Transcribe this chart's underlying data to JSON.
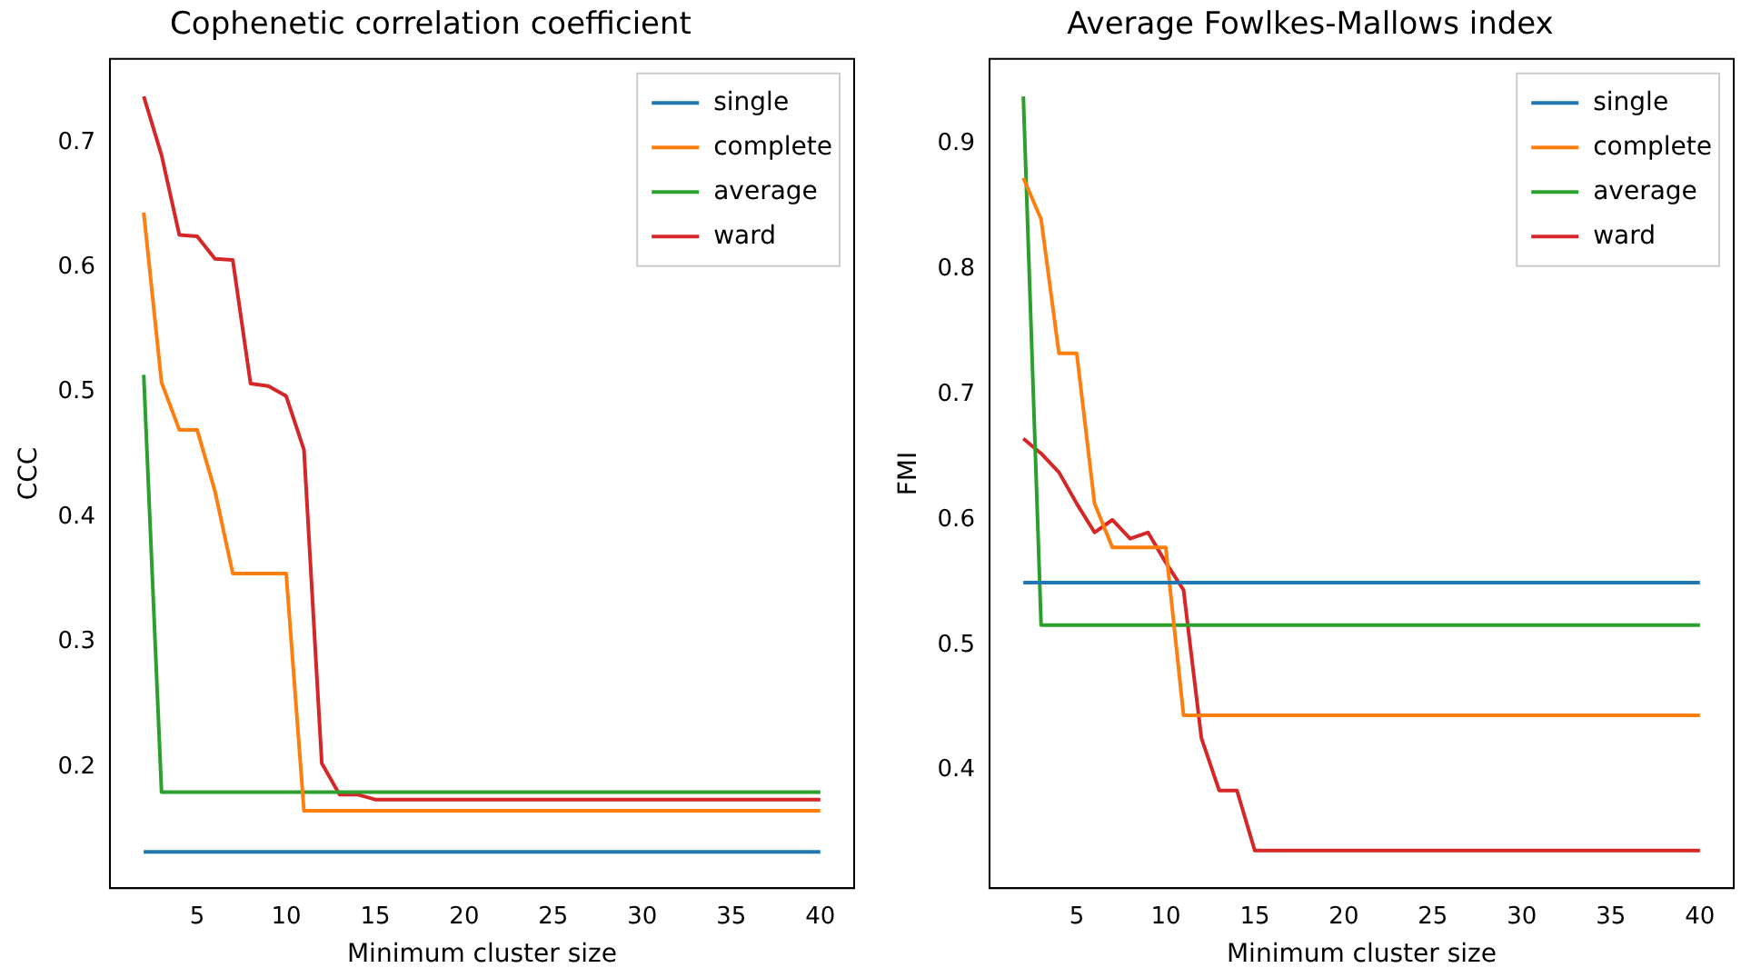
{
  "chart_data": [
    {
      "type": "line",
      "title": "Cophenetic correlation coefficient",
      "xlabel": "Minimum cluster size",
      "ylabel": "CCC",
      "x": [
        2,
        3,
        4,
        5,
        6,
        7,
        8,
        9,
        10,
        11,
        12,
        13,
        14,
        15,
        16,
        17,
        18,
        19,
        20,
        21,
        22,
        23,
        24,
        25,
        26,
        27,
        28,
        29,
        30,
        31,
        32,
        33,
        34,
        35,
        36,
        37,
        38,
        39,
        40
      ],
      "series": [
        {
          "name": "single",
          "color": "#1f77b4",
          "values": [
            0.132,
            0.132,
            0.132,
            0.132,
            0.132,
            0.132,
            0.132,
            0.132,
            0.132,
            0.132,
            0.132,
            0.132,
            0.132,
            0.132,
            0.132,
            0.132,
            0.132,
            0.132,
            0.132,
            0.132,
            0.132,
            0.132,
            0.132,
            0.132,
            0.132,
            0.132,
            0.132,
            0.132,
            0.132,
            0.132,
            0.132,
            0.132,
            0.132,
            0.132,
            0.132,
            0.132,
            0.132,
            0.132,
            0.132
          ]
        },
        {
          "name": "complete",
          "color": "#ff7f0e",
          "values": [
            0.644,
            0.508,
            0.47,
            0.47,
            0.421,
            0.355,
            0.355,
            0.355,
            0.355,
            0.165,
            0.165,
            0.165,
            0.165,
            0.165,
            0.165,
            0.165,
            0.165,
            0.165,
            0.165,
            0.165,
            0.165,
            0.165,
            0.165,
            0.165,
            0.165,
            0.165,
            0.165,
            0.165,
            0.165,
            0.165,
            0.165,
            0.165,
            0.165,
            0.165,
            0.165,
            0.165,
            0.165,
            0.165,
            0.165
          ]
        },
        {
          "name": "average",
          "color": "#2ca02c",
          "values": [
            0.514,
            0.18,
            0.18,
            0.18,
            0.18,
            0.18,
            0.18,
            0.18,
            0.18,
            0.18,
            0.18,
            0.18,
            0.18,
            0.18,
            0.18,
            0.18,
            0.18,
            0.18,
            0.18,
            0.18,
            0.18,
            0.18,
            0.18,
            0.18,
            0.18,
            0.18,
            0.18,
            0.18,
            0.18,
            0.18,
            0.18,
            0.18,
            0.18,
            0.18,
            0.18,
            0.18,
            0.18,
            0.18,
            0.18
          ]
        },
        {
          "name": "ward",
          "color": "#d62728",
          "values": [
            0.737,
            0.69,
            0.626,
            0.625,
            0.607,
            0.606,
            0.507,
            0.505,
            0.497,
            0.454,
            0.203,
            0.178,
            0.178,
            0.174,
            0.174,
            0.174,
            0.174,
            0.174,
            0.174,
            0.174,
            0.174,
            0.174,
            0.174,
            0.174,
            0.174,
            0.174,
            0.174,
            0.174,
            0.174,
            0.174,
            0.174,
            0.174,
            0.174,
            0.174,
            0.174,
            0.174,
            0.174,
            0.174,
            0.174
          ]
        }
      ],
      "xlim": [
        0.1,
        41.9
      ],
      "xticks": [
        5,
        10,
        15,
        20,
        25,
        30,
        35,
        40
      ],
      "ylim": [
        0.103,
        0.767
      ],
      "yticks": [
        0.2,
        0.3,
        0.4,
        0.5,
        0.6,
        0.7
      ],
      "grid": false,
      "legend": "top right",
      "marker": "none",
      "line_style": "solid"
    },
    {
      "type": "line",
      "title": "Average Fowlkes-Mallows index",
      "xlabel": "Minimum cluster size",
      "ylabel": "FMI",
      "x": [
        2,
        3,
        4,
        5,
        6,
        7,
        8,
        9,
        10,
        11,
        12,
        13,
        14,
        15,
        16,
        17,
        18,
        19,
        20,
        21,
        22,
        23,
        24,
        25,
        26,
        27,
        28,
        29,
        30,
        31,
        32,
        33,
        34,
        35,
        36,
        37,
        38,
        39,
        40
      ],
      "series": [
        {
          "name": "single",
          "color": "#1f77b4",
          "values": [
            0.55,
            0.55,
            0.55,
            0.55,
            0.55,
            0.55,
            0.55,
            0.55,
            0.55,
            0.55,
            0.55,
            0.55,
            0.55,
            0.55,
            0.55,
            0.55,
            0.55,
            0.55,
            0.55,
            0.55,
            0.55,
            0.55,
            0.55,
            0.55,
            0.55,
            0.55,
            0.55,
            0.55,
            0.55,
            0.55,
            0.55,
            0.55,
            0.55,
            0.55,
            0.55,
            0.55,
            0.55,
            0.55,
            0.55
          ]
        },
        {
          "name": "complete",
          "color": "#ff7f0e",
          "values": [
            0.873,
            0.84,
            0.733,
            0.733,
            0.613,
            0.578,
            0.578,
            0.578,
            0.578,
            0.444,
            0.444,
            0.444,
            0.444,
            0.444,
            0.444,
            0.444,
            0.444,
            0.444,
            0.444,
            0.444,
            0.444,
            0.444,
            0.444,
            0.444,
            0.444,
            0.444,
            0.444,
            0.444,
            0.444,
            0.444,
            0.444,
            0.444,
            0.444,
            0.444,
            0.444,
            0.444,
            0.444,
            0.444,
            0.444
          ]
        },
        {
          "name": "average",
          "color": "#2ca02c",
          "values": [
            0.938,
            0.516,
            0.516,
            0.516,
            0.516,
            0.516,
            0.516,
            0.516,
            0.516,
            0.516,
            0.516,
            0.516,
            0.516,
            0.516,
            0.516,
            0.516,
            0.516,
            0.516,
            0.516,
            0.516,
            0.516,
            0.516,
            0.516,
            0.516,
            0.516,
            0.516,
            0.516,
            0.516,
            0.516,
            0.516,
            0.516,
            0.516,
            0.516,
            0.516,
            0.516,
            0.516,
            0.516,
            0.516,
            0.516
          ]
        },
        {
          "name": "ward",
          "color": "#d62728",
          "values": [
            0.665,
            0.653,
            0.638,
            0.613,
            0.59,
            0.6,
            0.585,
            0.59,
            0.566,
            0.544,
            0.426,
            0.384,
            0.384,
            0.336,
            0.336,
            0.336,
            0.336,
            0.336,
            0.336,
            0.336,
            0.336,
            0.336,
            0.336,
            0.336,
            0.336,
            0.336,
            0.336,
            0.336,
            0.336,
            0.336,
            0.336,
            0.336,
            0.336,
            0.336,
            0.336,
            0.336,
            0.336,
            0.336,
            0.336
          ]
        }
      ],
      "xlim": [
        0.1,
        41.9
      ],
      "xticks": [
        5,
        10,
        15,
        20,
        25,
        30,
        35,
        40
      ],
      "ylim": [
        0.306,
        0.968
      ],
      "yticks": [
        0.4,
        0.5,
        0.6,
        0.7,
        0.8,
        0.9
      ],
      "grid": false,
      "legend": "top right",
      "marker": "none",
      "line_style": "solid"
    }
  ]
}
